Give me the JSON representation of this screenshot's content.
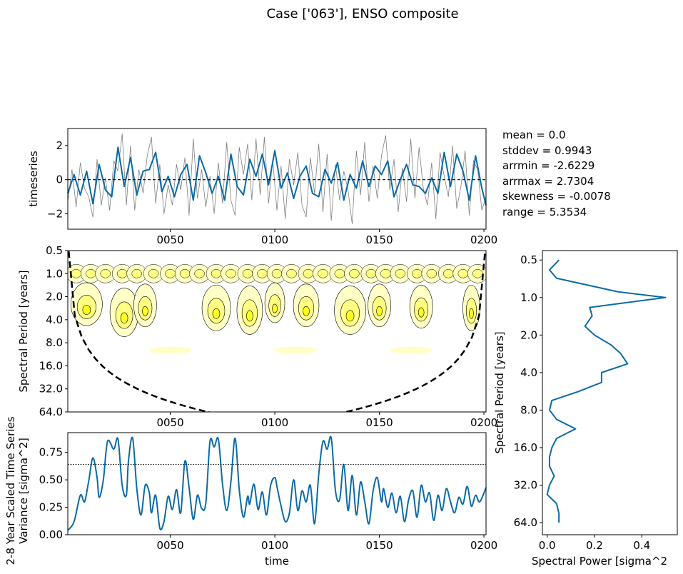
{
  "title": "Case ['063'], ENSO composite",
  "stats": {
    "mean": "mean = 0.0",
    "stddev": "stddev = 0.9943",
    "arrmin": "arrmin = -2.6229",
    "arrmax": "arrmax = 2.7304",
    "skewness": "skewness = -0.0078",
    "range": "range = 5.3534"
  },
  "colors": {
    "series_line": "#0a6ba6",
    "raw_line": "#808080",
    "contour_light": "#ffffc6",
    "contour_mid": "#ffff80",
    "contour_strong": "#ffff20",
    "coi": "#000000"
  },
  "chart_data": [
    {
      "type": "line",
      "panel": "timeseries",
      "ylabel": "timeseries",
      "xlim": [
        1,
        201
      ],
      "ylim": [
        -2.9,
        3.0
      ],
      "xticks": [
        "0050",
        "0100",
        "0150",
        "0200"
      ],
      "yticks": [
        "2",
        "0",
        "−2"
      ],
      "reference_line": 0,
      "series": [
        {
          "style": "smoothed",
          "x": [
            1,
            4,
            7,
            10,
            13,
            16,
            19,
            22,
            25,
            28,
            31,
            34,
            37,
            40,
            43,
            46,
            49,
            52,
            55,
            58,
            61,
            64,
            67,
            70,
            73,
            76,
            79,
            82,
            85,
            88,
            91,
            94,
            97,
            100,
            103,
            106,
            109,
            112,
            115,
            118,
            121,
            124,
            127,
            130,
            133,
            136,
            139,
            142,
            145,
            148,
            151,
            154,
            157,
            160,
            163,
            166,
            169,
            172,
            175,
            178,
            181,
            184,
            187,
            190,
            193,
            196,
            199,
            201
          ],
          "values": [
            -0.8,
            0.3,
            -0.9,
            0.5,
            -1.4,
            0.9,
            -0.6,
            -1.0,
            1.9,
            -0.4,
            1.3,
            -0.9,
            0.5,
            0.6,
            1.6,
            -0.7,
            0.2,
            -1.0,
            0.3,
            0.9,
            -1.2,
            1.4,
            0.4,
            -0.8,
            0.2,
            -1.2,
            1.5,
            -0.4,
            -0.9,
            1.2,
            0.2,
            1.5,
            -0.3,
            1.7,
            -0.5,
            0.4,
            -1.1,
            0.2,
            0.8,
            -0.8,
            -1.0,
            0.6,
            -0.2,
            1.0,
            -1.2,
            0.3,
            -0.5,
            1.1,
            -0.4,
            0.8,
            0.3,
            1.1,
            -1.0,
            0.0,
            0.9,
            -0.3,
            -0.4,
            -0.8,
            0.1,
            -0.8,
            1.6,
            -0.4,
            1.5,
            0.5,
            -1.2,
            1.4,
            -0.5,
            -1.5
          ]
        },
        {
          "style": "raw",
          "x": [
            1,
            3,
            5,
            7,
            9,
            11,
            13,
            15,
            17,
            19,
            21,
            23,
            25,
            27,
            29,
            31,
            33,
            35,
            37,
            39,
            41,
            43,
            45,
            47,
            49,
            51,
            53,
            55,
            57,
            59,
            61,
            63,
            65,
            67,
            69,
            71,
            73,
            75,
            77,
            79,
            81,
            83,
            85,
            87,
            89,
            91,
            93,
            95,
            97,
            99,
            101,
            103,
            105,
            107,
            109,
            111,
            113,
            115,
            117,
            119,
            121,
            123,
            125,
            127,
            129,
            131,
            133,
            135,
            137,
            139,
            141,
            143,
            145,
            147,
            149,
            151,
            153,
            155,
            157,
            159,
            161,
            163,
            165,
            167,
            169,
            171,
            173,
            175,
            177,
            179,
            181,
            183,
            185,
            187,
            189,
            191,
            193,
            195,
            197,
            199,
            201
          ],
          "values": [
            -1.3,
            0.6,
            -1.6,
            1.0,
            -0.5,
            -1.0,
            -2.2,
            1.2,
            -1.5,
            0.1,
            -1.8,
            1.1,
            0.5,
            2.7,
            -1.5,
            2.0,
            -1.8,
            0.6,
            -0.8,
            1.4,
            2.5,
            -1.4,
            0.9,
            -2.0,
            -0.3,
            -1.5,
            0.9,
            -0.6,
            1.3,
            -2.1,
            2.4,
            -1.1,
            0.6,
            -1.6,
            0.2,
            -2.0,
            1.0,
            -1.4,
            2.2,
            -1.2,
            -2.1,
            1.9,
            0.3,
            2.1,
            -1.2,
            2.4,
            -0.9,
            2.5,
            -1.4,
            1.2,
            -1.8,
            0.8,
            -2.3,
            1.2,
            -0.3,
            1.6,
            -1.5,
            -2.2,
            1.3,
            -0.8,
            2.1,
            -1.9,
            1.5,
            -2.4,
            0.9,
            -1.2,
            0.5,
            -0.6,
            -2.6,
            1.7,
            -0.9,
            2.2,
            -1.3,
            0.8,
            -1.1,
            1.4,
            2.6,
            -0.6,
            1.2,
            -1.9,
            0.7,
            -1.3,
            2.4,
            -1.1,
            1.9,
            -0.5,
            -1.5,
            1.0,
            -2.3,
            1.6,
            0.2,
            -1.0,
            2.0,
            -1.7,
            -0.4,
            1.7,
            -2.1,
            1.1,
            0.6,
            -1.8,
            -1.0
          ]
        }
      ]
    },
    {
      "type": "heatmap",
      "panel": "wavelet",
      "ylabel": "Spectral Period [years]",
      "xlim": [
        1,
        201
      ],
      "yticks": [
        "0.5",
        "1.0",
        "2.0",
        "4.0",
        "8.0",
        "16.0",
        "32.0",
        "64.0"
      ],
      "xticks": [
        "0050",
        "0100",
        "0150",
        "0200"
      ],
      "scale": "log2",
      "ylim": [
        0.5,
        64
      ],
      "note": "Wavelet power contours with dashed cone of influence"
    },
    {
      "type": "line",
      "panel": "scaled_variance",
      "ylabel": "2-8 Year Scaled Time Series\nVariance [sigma^2]",
      "xlabel": "time",
      "xlim": [
        1,
        201
      ],
      "ylim": [
        0.0,
        0.93
      ],
      "yticks": [
        "0.00",
        "0.25",
        "0.50",
        "0.75"
      ],
      "xticks": [
        "0050",
        "0100",
        "0150",
        "0200"
      ],
      "threshold": 0.64,
      "x": [
        1,
        4,
        7,
        9,
        11,
        13,
        15,
        16,
        18,
        20,
        23,
        25,
        27,
        29,
        30,
        32,
        34,
        36,
        38,
        40,
        41,
        43,
        45,
        47,
        49,
        51,
        53,
        55,
        57,
        59,
        61,
        63,
        65,
        67,
        69,
        71,
        73,
        75,
        77,
        79,
        81,
        83,
        85,
        87,
        88,
        90,
        92,
        94,
        96,
        98,
        100,
        101,
        103,
        105,
        107,
        109,
        111,
        113,
        115,
        117,
        119,
        121,
        123,
        125,
        127,
        129,
        131,
        133,
        135,
        137,
        139,
        141,
        143,
        145,
        147,
        149,
        151,
        152,
        154,
        156,
        158,
        160,
        162,
        164,
        166,
        168,
        170,
        172,
        174,
        176,
        178,
        180,
        182,
        184,
        186,
        188,
        190,
        192,
        194,
        196,
        198,
        201
      ],
      "values": [
        0.04,
        0.12,
        0.36,
        0.3,
        0.49,
        0.7,
        0.52,
        0.34,
        0.5,
        0.85,
        0.78,
        0.87,
        0.45,
        0.36,
        0.67,
        0.88,
        0.42,
        0.18,
        0.45,
        0.38,
        0.2,
        0.36,
        0.06,
        0.12,
        0.35,
        0.23,
        0.41,
        0.2,
        0.67,
        0.43,
        0.14,
        0.36,
        0.24,
        0.29,
        0.85,
        0.8,
        0.87,
        0.46,
        0.22,
        0.48,
        0.88,
        0.41,
        0.16,
        0.35,
        0.28,
        0.46,
        0.23,
        0.39,
        0.18,
        0.45,
        0.52,
        0.44,
        0.26,
        0.12,
        0.2,
        0.5,
        0.22,
        0.4,
        0.3,
        0.45,
        0.1,
        0.55,
        0.85,
        0.78,
        0.88,
        0.4,
        0.32,
        0.64,
        0.22,
        0.54,
        0.18,
        0.48,
        0.3,
        0.1,
        0.4,
        0.52,
        0.3,
        0.42,
        0.25,
        0.38,
        0.2,
        0.35,
        0.12,
        0.32,
        0.4,
        0.16,
        0.45,
        0.3,
        0.38,
        0.13,
        0.36,
        0.22,
        0.42,
        0.3,
        0.2,
        0.34,
        0.28,
        0.44,
        0.26,
        0.36,
        0.3,
        0.43
      ]
    },
    {
      "type": "line",
      "panel": "global_spectrum",
      "xlabel": "Spectral Power [sigma^2",
      "ylabel": "Spectral Period [years]",
      "xlim": [
        -0.02,
        0.55
      ],
      "ylim": [
        0.42,
        80
      ],
      "scale": "log2",
      "yticks": [
        "0.5",
        "1.0",
        "2.0",
        "4.0",
        "8.0",
        "16.0",
        "32.0",
        "64.0"
      ],
      "xticks": [
        "0.0",
        "0.2",
        "0.4"
      ],
      "period": [
        0.5,
        0.6,
        0.7,
        0.9,
        1.0,
        1.2,
        1.4,
        1.7,
        2.0,
        2.4,
        2.8,
        3.4,
        4.0,
        4.8,
        5.7,
        6.7,
        8.0,
        9.5,
        11.3,
        13.5,
        16.0,
        19.0,
        22.6,
        27.0,
        32.0,
        38.0,
        45.0,
        54.0,
        64.0
      ],
      "power": [
        0.05,
        0.01,
        0.04,
        0.3,
        0.5,
        0.18,
        0.19,
        0.16,
        0.2,
        0.27,
        0.31,
        0.34,
        0.23,
        0.23,
        0.13,
        0.02,
        0.01,
        0.04,
        0.12,
        0.04,
        0.02,
        0.01,
        0.01,
        0.03,
        0.01,
        0.0,
        0.04,
        0.05,
        0.05
      ]
    }
  ]
}
